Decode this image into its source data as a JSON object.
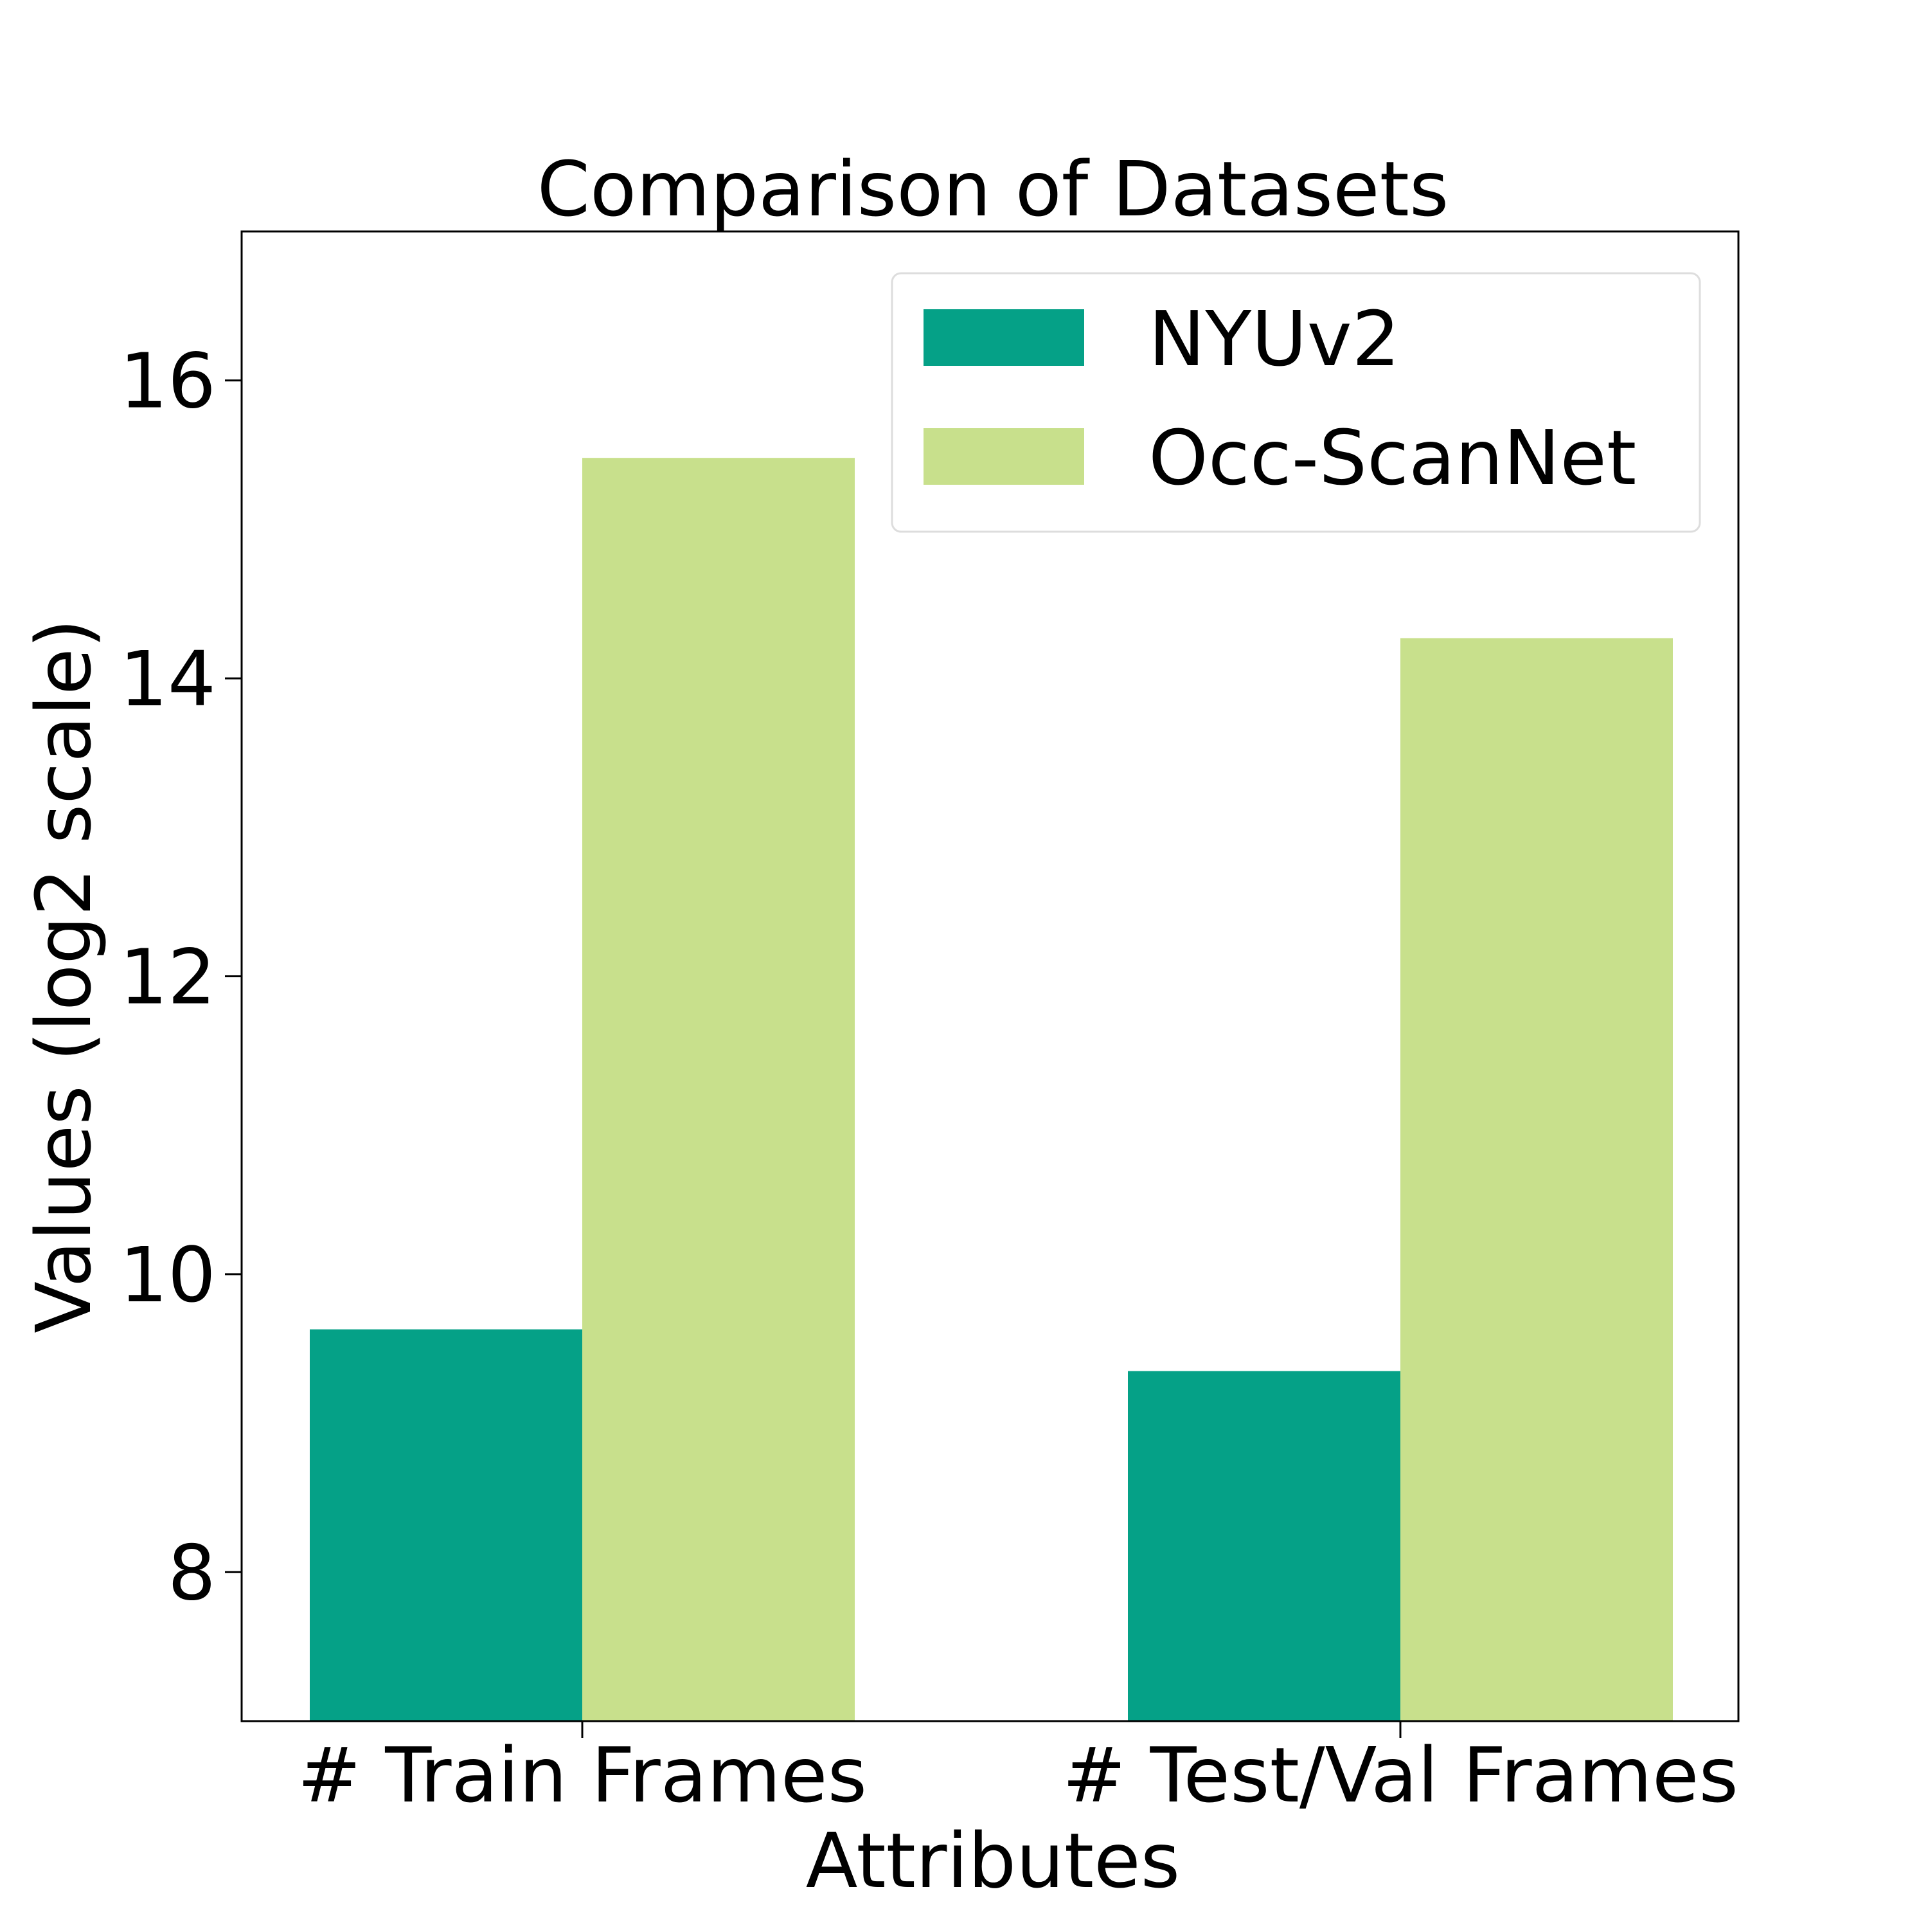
{
  "chart_data": {
    "type": "bar",
    "title": "Comparison of Datasets",
    "xlabel": "Attributes",
    "ylabel": "Values (log2 scale)",
    "categories": [
      "# Train Frames",
      "# Test/Val Frames"
    ],
    "series": [
      {
        "name": "NYUv2",
        "values": [
          9.63,
          9.35
        ],
        "color": "#05a187"
      },
      {
        "name": "Occ-ScanNet",
        "values": [
          15.48,
          14.27
        ],
        "color": "#c8e08c"
      }
    ],
    "ylim": [
      7,
      17
    ],
    "yticks": [
      8,
      10,
      12,
      14,
      16
    ],
    "grid": false,
    "legend_position": "upper right"
  }
}
